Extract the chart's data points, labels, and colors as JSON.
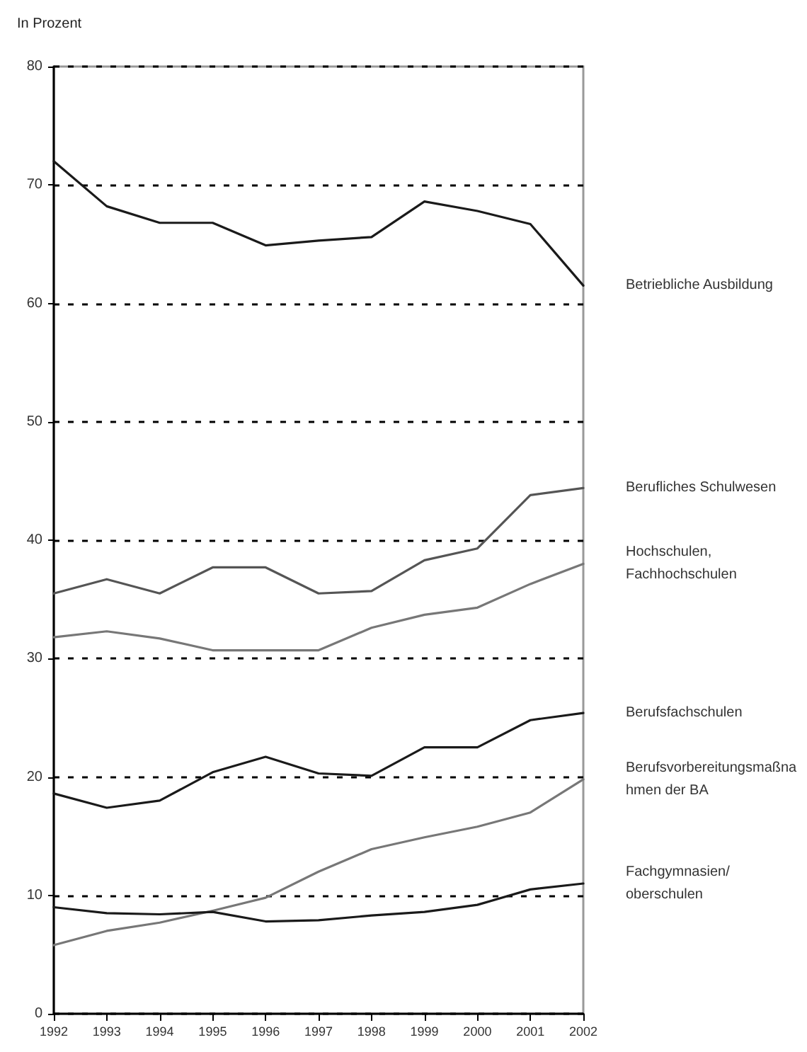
{
  "chart_data": {
    "type": "line",
    "ylabel": "In Prozent",
    "categories": [
      "1992",
      "1993",
      "1994",
      "1995",
      "1996",
      "1997",
      "1998",
      "1999",
      "2000",
      "2001",
      "2002"
    ],
    "series": [
      {
        "name": "Betriebliche Ausbildung",
        "color": "#1a1a1a",
        "values": [
          72,
          68.2,
          66.8,
          66.8,
          64.9,
          65.3,
          65.6,
          68.6,
          67.8,
          66.7,
          61.5
        ]
      },
      {
        "name": "Berufliches Schulwesen",
        "color": "#555555",
        "values": [
          35.5,
          36.7,
          35.5,
          37.7,
          37.7,
          35.5,
          35.7,
          38.3,
          39.3,
          43.8,
          44.4
        ]
      },
      {
        "name": "Hochschulen, Fachhochschulen",
        "color": "#777777",
        "values": [
          31.8,
          32.3,
          31.7,
          30.7,
          30.7,
          30.7,
          32.6,
          33.7,
          34.3,
          36.3,
          38
        ]
      },
      {
        "name": "Berufsfachschulen",
        "color": "#1a1a1a",
        "values": [
          18.6,
          17.4,
          18,
          20.4,
          21.7,
          20.3,
          20.1,
          22.5,
          22.5,
          24.8,
          25.4
        ]
      },
      {
        "name": "Berufsvorbereitungsmaßnahmen der BA",
        "color": "#777777",
        "values": [
          5.8,
          7,
          7.7,
          8.7,
          9.8,
          12,
          13.9,
          14.9,
          15.8,
          17,
          19.8
        ]
      },
      {
        "name": "Fachgymnasien/ oberschulen",
        "color": "#1a1a1a",
        "values": [
          9,
          8.5,
          8.4,
          8.6,
          7.8,
          7.9,
          8.3,
          8.6,
          9.2,
          10.5,
          11
        ]
      }
    ],
    "ylim": [
      0,
      80
    ],
    "yticks": [
      0,
      10,
      20,
      30,
      40,
      50,
      60,
      70,
      80
    ],
    "grid": "y",
    "legend": false,
    "marker": "none",
    "line_style": "solid"
  }
}
